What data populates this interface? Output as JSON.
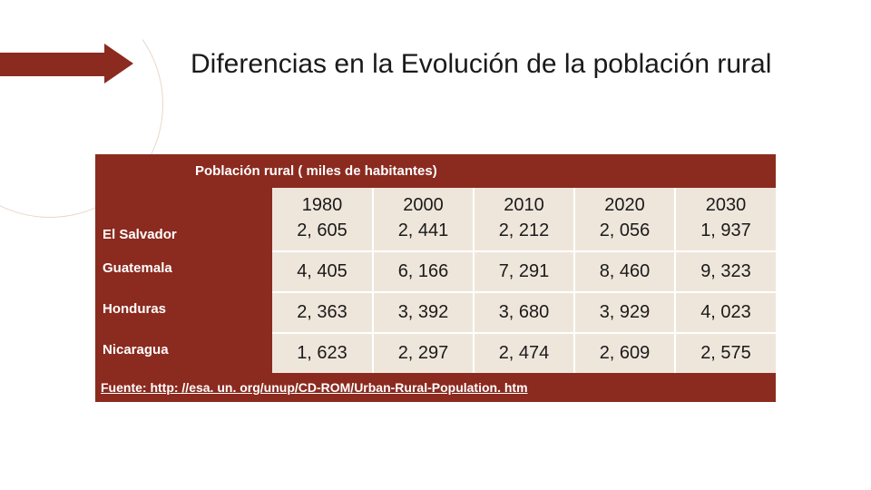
{
  "title": "Diferencias en la Evolución de la población rural",
  "table": {
    "caption": "Población rural  ( miles de habitantes)",
    "years": [
      "1980",
      "2000",
      "2010",
      "2020",
      "2030"
    ],
    "rows": [
      {
        "country": "El Salvador",
        "values": [
          "2, 605",
          "2, 441",
          "2, 212",
          "2, 056",
          "1, 937"
        ]
      },
      {
        "country": "Guatemala",
        "values": [
          "4, 405",
          "6, 166",
          "7, 291",
          "8, 460",
          "9, 323"
        ]
      },
      {
        "country": "Honduras",
        "values": [
          "2, 363",
          "3, 392",
          "3, 680",
          "3, 929",
          "4, 023"
        ]
      },
      {
        "country": "Nicaragua",
        "values": [
          "1, 623",
          "2, 297",
          "2, 474",
          "2, 609",
          "2, 575"
        ]
      }
    ],
    "source": "Fuente: http: //esa. un. org/unup/CD-ROM/Urban-Rural-Population. htm"
  },
  "colors": {
    "brand": "#8b2a1f",
    "cell_bg": "#efe6db",
    "text": "#1a1a1a",
    "white": "#ffffff",
    "arc": "#e6d9c8"
  },
  "fonts": {
    "title_size": 30,
    "header_size": 15,
    "year_size": 20,
    "value_size": 20,
    "source_size": 14
  }
}
